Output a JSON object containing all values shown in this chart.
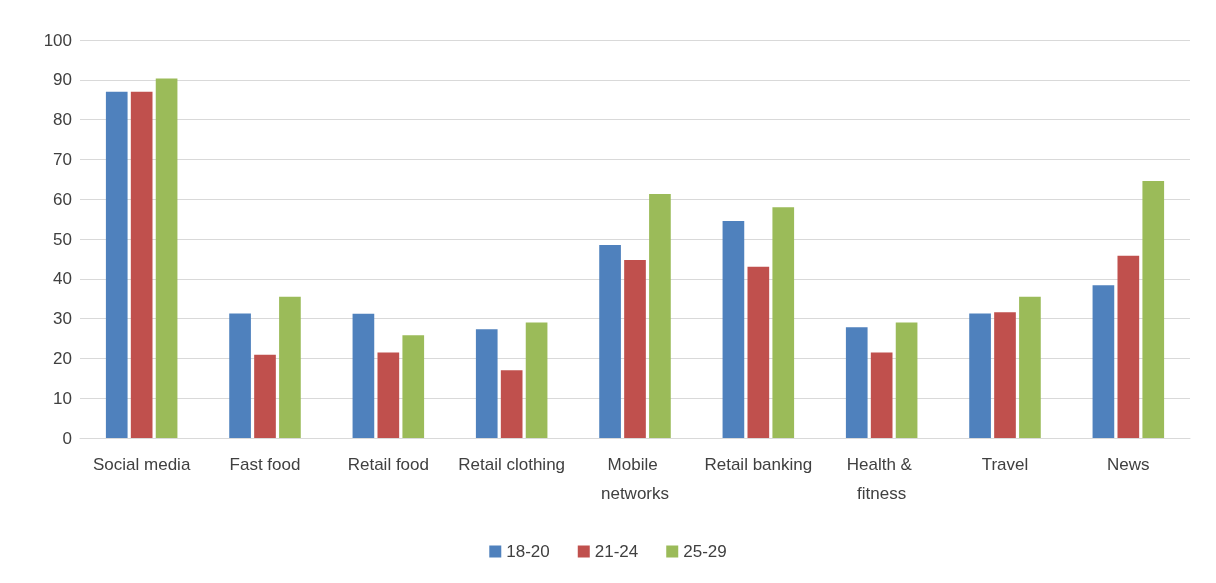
{
  "chart_data": {
    "type": "bar",
    "categories": [
      "Social media",
      "Fast food",
      "Retail food",
      "Retail clothing",
      "Mobile networks",
      "Retail banking",
      "Health & fitness",
      "Travel",
      "News"
    ],
    "series": [
      {
        "name": "18-20",
        "color": "#4f81bd",
        "values": [
          87,
          31.3,
          31.2,
          27.3,
          48.5,
          54.5,
          27.8,
          31.3,
          38.4
        ]
      },
      {
        "name": "21-24",
        "color": "#c0504d",
        "values": [
          87,
          20.9,
          21.5,
          17,
          44.7,
          43,
          21.5,
          31.6,
          45.8
        ]
      },
      {
        "name": "25-29",
        "color": "#9bbb59",
        "values": [
          90.3,
          35.5,
          25.8,
          29,
          61.3,
          58,
          29,
          35.5,
          64.6
        ]
      }
    ],
    "ylim": [
      0,
      100
    ],
    "yticks": [
      0,
      10,
      20,
      30,
      40,
      50,
      60,
      70,
      80,
      90,
      100
    ],
    "grid": "y",
    "legend": "bottom"
  }
}
